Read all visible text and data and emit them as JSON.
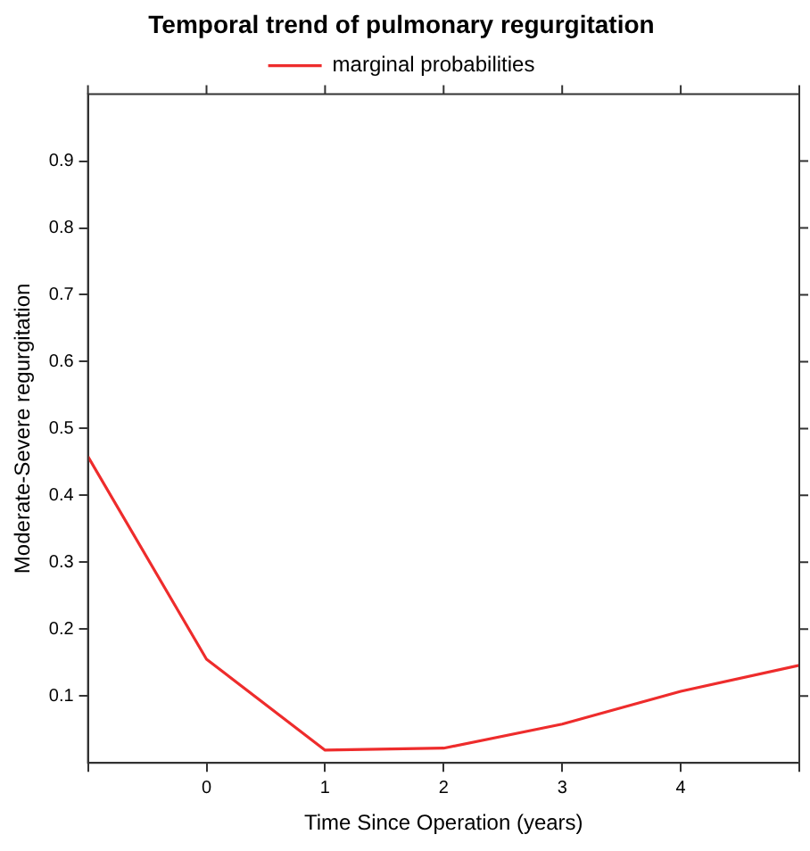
{
  "chart_data": {
    "type": "line",
    "title": "Temporal trend of pulmonary regurgitation",
    "xlabel": "Time Since Operation (years)",
    "ylabel": "Moderate-Severe regurgitation",
    "x": [
      -1,
      0,
      1,
      2,
      3,
      4,
      5
    ],
    "series": [
      {
        "name": "marginal probabilities",
        "color": "#ee2c2c",
        "values": [
          0.458,
          0.155,
          0.019,
          0.022,
          0.058,
          0.107,
          0.146
        ]
      }
    ],
    "xlim": [
      -1,
      5
    ],
    "xticks": [
      {
        "value": -1,
        "label": null
      },
      0,
      1,
      2,
      3,
      4,
      {
        "value": 5,
        "label": null
      }
    ],
    "ylim": [
      0,
      1
    ],
    "yticks": [
      0.1,
      0.2,
      0.3,
      0.4,
      0.5,
      0.6,
      0.7,
      0.8,
      0.9
    ],
    "grid": false,
    "legend": "top",
    "marker": "none",
    "line_style": "solid"
  }
}
